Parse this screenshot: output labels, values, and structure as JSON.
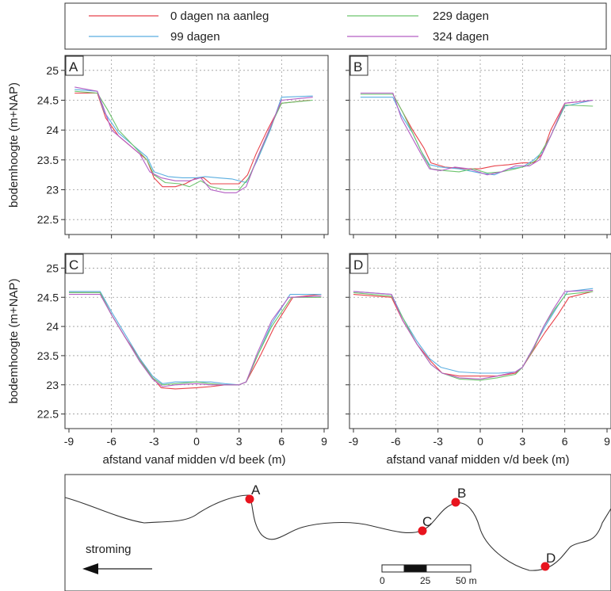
{
  "colors": {
    "s0": "#e8424a",
    "s1": "#5aaee0",
    "s2": "#6cc46c",
    "s3": "#b45fc4",
    "marker": "#e8141e",
    "river": "#333333"
  },
  "chart_data": [
    {
      "type": "line",
      "panel_label": "A",
      "xlim": [
        -9,
        9
      ],
      "ylim": [
        22.25,
        25.25
      ],
      "xticks": [
        -9,
        -6,
        -3,
        0,
        3,
        6,
        9
      ],
      "yticks": [
        22.5,
        23,
        23.5,
        24,
        24.5,
        25
      ],
      "xlabel": "",
      "ylabel": "bodemhoogte (m+NAP)",
      "grid": true,
      "series": [
        {
          "name": "0 dagen na aanleg",
          "x": [
            -8.6,
            -7,
            -6.4,
            -5.5,
            -4.5,
            -3.5,
            -3,
            -2.4,
            -1.5,
            -0.8,
            0,
            0.5,
            1,
            2,
            3,
            3.6,
            4.2,
            5,
            6,
            8
          ],
          "y": [
            24.62,
            24.62,
            24.2,
            23.9,
            23.7,
            23.5,
            23.2,
            23.05,
            23.05,
            23.1,
            23.2,
            23.2,
            23.1,
            23.1,
            23.1,
            23.25,
            23.6,
            24.0,
            24.45,
            24.5
          ]
        },
        {
          "name": "99 dagen",
          "x": [
            -8.6,
            -7,
            -6.5,
            -5.5,
            -4.5,
            -3.5,
            -3,
            -2,
            -1,
            0,
            0.6,
            1.5,
            2.5,
            3.5,
            4.3,
            5.2,
            6,
            8.2
          ],
          "y": [
            24.68,
            24.65,
            24.3,
            23.95,
            23.75,
            23.55,
            23.3,
            23.22,
            23.2,
            23.2,
            23.22,
            23.2,
            23.18,
            23.12,
            23.5,
            24.0,
            24.55,
            24.57
          ]
        },
        {
          "name": "229 dagen",
          "x": [
            -8.6,
            -7,
            -6.3,
            -5.5,
            -4.5,
            -3.5,
            -3,
            -2.2,
            -1.2,
            -0.5,
            0.3,
            1,
            2,
            3,
            3.7,
            4.6,
            5.5,
            6,
            8.2
          ],
          "y": [
            24.65,
            24.62,
            24.35,
            24.0,
            23.75,
            23.5,
            23.25,
            23.12,
            23.1,
            23.05,
            23.15,
            23.05,
            23.0,
            23.0,
            23.2,
            23.7,
            24.2,
            24.45,
            24.5
          ]
        },
        {
          "name": "324 dagen",
          "x": [
            -8.6,
            -7,
            -6.6,
            -6,
            -5,
            -4,
            -3.3,
            -2.5,
            -1.5,
            -0.5,
            0.3,
            1,
            2,
            2.8,
            3.5,
            4.4,
            5.3,
            6,
            8.2
          ],
          "y": [
            24.72,
            24.65,
            24.4,
            24.0,
            23.8,
            23.6,
            23.3,
            23.2,
            23.15,
            23.15,
            23.2,
            23.0,
            22.95,
            22.95,
            23.05,
            23.6,
            24.1,
            24.5,
            24.55
          ]
        }
      ]
    },
    {
      "type": "line",
      "panel_label": "B",
      "xlim": [
        -9,
        9
      ],
      "ylim": [
        22.25,
        25.25
      ],
      "xticks": [
        -9,
        -6,
        -3,
        0,
        3,
        6,
        9
      ],
      "yticks": [
        22.5,
        23,
        23.5,
        24,
        24.5,
        25
      ],
      "xlabel": "",
      "ylabel": "",
      "grid": true,
      "series": [
        {
          "name": "0 dagen na aanleg",
          "x": [
            -8.5,
            -6.2,
            -5.5,
            -4.8,
            -4,
            -3.5,
            -2.5,
            -1,
            0,
            1,
            2,
            3,
            3.8,
            4.4,
            5,
            6,
            8
          ],
          "y": [
            24.6,
            24.6,
            24.3,
            24.0,
            23.7,
            23.45,
            23.38,
            23.35,
            23.35,
            23.4,
            23.42,
            23.45,
            23.45,
            23.6,
            24.0,
            24.45,
            24.5
          ]
        },
        {
          "name": "99 dagen",
          "x": [
            -8.5,
            -6.2,
            -5.6,
            -4.8,
            -4.2,
            -3.6,
            -2.8,
            -1.5,
            0,
            1,
            2,
            3,
            3.8,
            4.5,
            5.2,
            6,
            8
          ],
          "y": [
            24.55,
            24.55,
            24.25,
            23.95,
            23.65,
            23.42,
            23.38,
            23.35,
            23.28,
            23.25,
            23.35,
            23.38,
            23.5,
            23.65,
            24.0,
            24.4,
            24.5
          ]
        },
        {
          "name": "229 dagen",
          "x": [
            -8.5,
            -6.2,
            -5.5,
            -4.8,
            -4.1,
            -3.5,
            -2.5,
            -1.5,
            -0.5,
            0.5,
            1.5,
            2.5,
            3.3,
            4,
            5,
            6,
            8
          ],
          "y": [
            24.6,
            24.6,
            24.3,
            23.95,
            23.6,
            23.35,
            23.32,
            23.3,
            23.35,
            23.28,
            23.3,
            23.35,
            23.4,
            23.5,
            23.9,
            24.42,
            24.4
          ]
        },
        {
          "name": "324 dagen",
          "x": [
            -8.5,
            -6.2,
            -5.6,
            -4.9,
            -4.2,
            -3.6,
            -2.8,
            -1.8,
            -0.8,
            0.5,
            1.5,
            2.5,
            3.5,
            4.2,
            5,
            6,
            8
          ],
          "y": [
            24.62,
            24.62,
            24.2,
            23.9,
            23.6,
            23.35,
            23.32,
            23.38,
            23.35,
            23.25,
            23.3,
            23.4,
            23.4,
            23.5,
            23.9,
            24.45,
            24.5
          ]
        }
      ]
    },
    {
      "type": "line",
      "panel_label": "C",
      "xlim": [
        -9,
        9
      ],
      "ylim": [
        22.25,
        25.25
      ],
      "xticks": [
        -9,
        -6,
        -3,
        0,
        3,
        6,
        9
      ],
      "yticks": [
        22.5,
        23,
        23.5,
        24,
        24.5,
        25
      ],
      "xlabel": "afstand vanaf midden v/d beek (m)",
      "ylabel": "bodemhoogte (m+NAP)",
      "grid": true,
      "series": [
        {
          "name": "0 dagen na aanleg",
          "x": [
            -9,
            -6.8,
            -6,
            -5,
            -4,
            -3.2,
            -2.5,
            -1.5,
            0,
            1,
            2,
            3,
            3.5,
            4.5,
            5.5,
            6.8,
            8.8
          ],
          "y": [
            24.58,
            24.58,
            24.2,
            23.8,
            23.45,
            23.15,
            22.95,
            22.93,
            22.95,
            22.97,
            23.0,
            23.0,
            23.05,
            23.5,
            24.0,
            24.5,
            24.55
          ]
        },
        {
          "name": "99 dagen",
          "x": [
            -9,
            -6.8,
            -6,
            -5,
            -4,
            -3.1,
            -2.4,
            -1.5,
            0,
            1,
            2,
            3,
            3.5,
            4.3,
            5.3,
            6.6,
            8.8
          ],
          "y": [
            24.6,
            24.6,
            24.25,
            23.85,
            23.45,
            23.15,
            23.02,
            23.05,
            23.05,
            23.05,
            23.02,
            23.0,
            23.05,
            23.5,
            24.05,
            24.55,
            24.55
          ]
        },
        {
          "name": "229 dagen",
          "x": [
            -9,
            -6.8,
            -6,
            -5,
            -4,
            -3.1,
            -2.4,
            -1.5,
            0,
            1,
            2,
            3,
            3.5,
            4.3,
            5.3,
            6.7,
            8.8
          ],
          "y": [
            24.58,
            24.58,
            24.2,
            23.8,
            23.42,
            23.12,
            23.0,
            23.02,
            23.05,
            23.02,
            23.0,
            23.0,
            23.05,
            23.5,
            24.0,
            24.5,
            24.5
          ]
        },
        {
          "name": "324 dagen",
          "x": [
            -9,
            -6.8,
            -6,
            -5,
            -4,
            -3.1,
            -2.4,
            -1.5,
            0,
            1,
            2,
            3,
            3.5,
            4.3,
            5.3,
            6.5,
            8.8
          ],
          "y": [
            24.55,
            24.55,
            24.2,
            23.8,
            23.4,
            23.1,
            22.97,
            23.0,
            23.02,
            23.0,
            23.0,
            23.0,
            23.05,
            23.55,
            24.1,
            24.5,
            24.52
          ]
        }
      ]
    },
    {
      "type": "line",
      "panel_label": "D",
      "xlim": [
        -9,
        9
      ],
      "ylim": [
        22.25,
        25.25
      ],
      "xticks": [
        -9,
        -6,
        -3,
        0,
        3,
        6,
        9
      ],
      "yticks": [
        22.5,
        23,
        23.5,
        24,
        24.5,
        25
      ],
      "xlabel": "afstand vanaf midden v/d beek (m)",
      "ylabel": "",
      "grid": true,
      "series": [
        {
          "name": "0 dagen na aanleg",
          "x": [
            -9,
            -6.3,
            -5.5,
            -4.5,
            -3.5,
            -2.7,
            -1.5,
            0,
            1.2,
            2.5,
            3,
            3.8,
            4.6,
            5.5,
            6.3,
            8
          ],
          "y": [
            24.55,
            24.5,
            24.1,
            23.7,
            23.4,
            23.2,
            23.15,
            23.15,
            23.15,
            23.2,
            23.3,
            23.6,
            23.9,
            24.2,
            24.5,
            24.6
          ]
        },
        {
          "name": "99 dagen",
          "x": [
            -9,
            -6.3,
            -5.5,
            -4.5,
            -3.6,
            -2.8,
            -1.5,
            0,
            1.3,
            2.5,
            3,
            3.8,
            4.6,
            5.5,
            6.2,
            8
          ],
          "y": [
            24.6,
            24.55,
            24.15,
            23.75,
            23.45,
            23.3,
            23.22,
            23.2,
            23.2,
            23.22,
            23.3,
            23.65,
            24.0,
            24.35,
            24.6,
            24.65
          ]
        },
        {
          "name": "229 dagen",
          "x": [
            -9,
            -6.3,
            -5.5,
            -4.5,
            -3.5,
            -2.7,
            -1.5,
            0,
            1.2,
            2.5,
            3,
            3.8,
            4.5,
            5.3,
            6.1,
            8
          ],
          "y": [
            24.58,
            24.52,
            24.15,
            23.7,
            23.35,
            23.2,
            23.1,
            23.08,
            23.12,
            23.18,
            23.3,
            23.62,
            24.0,
            24.3,
            24.55,
            24.6
          ]
        },
        {
          "name": "324 dagen",
          "x": [
            -9,
            -6.3,
            -5.5,
            -4.5,
            -3.5,
            -2.7,
            -1.5,
            0,
            1.2,
            2.5,
            3,
            3.8,
            4.5,
            5.2,
            6,
            8
          ],
          "y": [
            24.6,
            24.55,
            24.1,
            23.7,
            23.35,
            23.2,
            23.12,
            23.1,
            23.15,
            23.22,
            23.3,
            23.65,
            24.0,
            24.3,
            24.6,
            24.62
          ]
        }
      ]
    }
  ],
  "map": {
    "labels": [
      "A",
      "B",
      "C",
      "D"
    ],
    "flow_label": "stroming",
    "scale_ticks": [
      "0",
      "25",
      "50 m"
    ]
  }
}
